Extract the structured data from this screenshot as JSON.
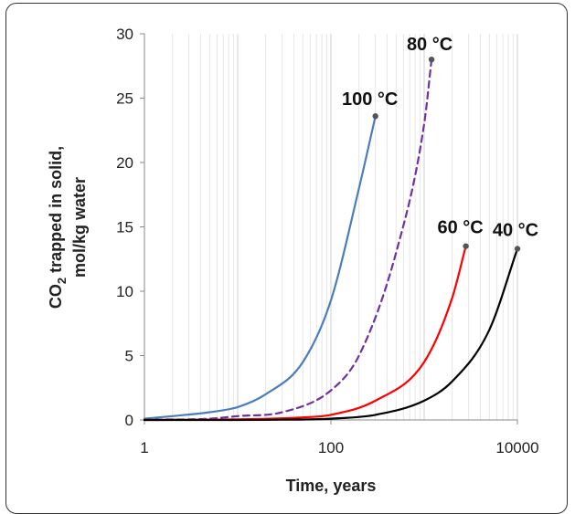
{
  "chart_data": {
    "type": "line",
    "x_scale": "log",
    "xlim": [
      1,
      10000
    ],
    "ylim": [
      0,
      30
    ],
    "xticks": [
      1,
      100,
      10000
    ],
    "xtick_labels": [
      "1",
      "100",
      "10000"
    ],
    "yticks": [
      0,
      5,
      10,
      15,
      20,
      25,
      30
    ],
    "ytick_labels": [
      "0",
      "5",
      "10",
      "15",
      "20",
      "25",
      "30"
    ],
    "xlabel": "Time, years",
    "ylabel_line1": "CO",
    "ylabel_sub": "2",
    "ylabel_rest": " trapped in solid,",
    "ylabel_line2": "mol/kg water",
    "grid": "vertical, log-decade minor lines",
    "legend": "none (series labelled at curve ends)",
    "series": [
      {
        "name": "100 °C",
        "color": "#4a7ebb",
        "dash": "solid",
        "x": [
          1,
          2,
          5,
          10,
          20,
          50,
          100,
          200,
          300
        ],
        "y": [
          0.1,
          0.3,
          0.6,
          1.0,
          2.0,
          4.5,
          9.3,
          18.0,
          23.6
        ]
      },
      {
        "name": "80 °C",
        "color": "#7030a0",
        "dash": "dashed",
        "x": [
          1,
          5,
          10,
          30,
          100,
          200,
          500,
          1000,
          1200
        ],
        "y": [
          0.02,
          0.1,
          0.3,
          0.6,
          2.3,
          5.0,
          13.0,
          23.0,
          28.0
        ]
      },
      {
        "name": "60 °C",
        "color": "#ff0000",
        "dash": "solid",
        "x": [
          1,
          10,
          50,
          100,
          300,
          1000,
          2000,
          2800
        ],
        "y": [
          0.0,
          0.05,
          0.2,
          0.4,
          1.5,
          4.5,
          9.5,
          13.5
        ]
      },
      {
        "name": "40 °C",
        "color": "#000000",
        "dash": "solid",
        "x": [
          1,
          30,
          100,
          300,
          1000,
          2000,
          5000,
          10000
        ],
        "y": [
          0.0,
          0.02,
          0.1,
          0.4,
          1.5,
          3.0,
          7.0,
          13.3
        ]
      }
    ],
    "end_labels": [
      "100 °C",
      "80 °C",
      "60 °C",
      "40 °C"
    ]
  }
}
